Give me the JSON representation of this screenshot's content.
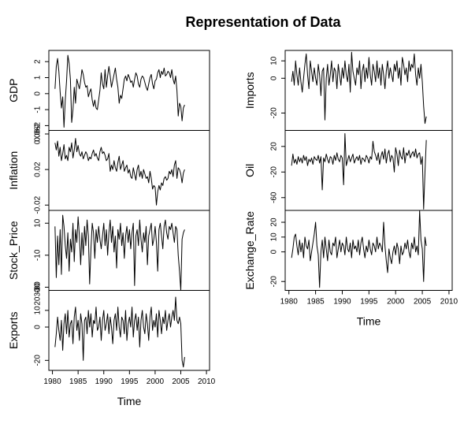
{
  "title": "Representation of Data",
  "chart_data": {
    "type": "line",
    "title": "Representation of Data",
    "xlabel": "Time",
    "x_start": 1980.5,
    "x_step": 0.25,
    "panels": [
      {
        "name": "GDP",
        "ylabel": "GDP",
        "ylim": [
          -2.3,
          2.7
        ],
        "yticks": [
          2,
          1,
          0,
          -1,
          -2
        ],
        "ytick_labels": [
          "2",
          "1",
          "0",
          "-1",
          "-2"
        ],
        "top_edge_label": "",
        "bottom_edge_label": "-2",
        "values": [
          0.3,
          1.7,
          2.2,
          1.4,
          0.1,
          -0.9,
          -0.2,
          -2.1,
          -0.4,
          0.8,
          2.4,
          1.9,
          0.9,
          -1.8,
          -1.0,
          0.4,
          -0.6,
          0.9,
          0.6,
          0.3,
          0.8,
          1.5,
          1.2,
          0.7,
          0.4,
          0.5,
          -0.2,
          0.1,
          0.3,
          -0.4,
          -0.8,
          -0.4,
          -0.9,
          -1.0,
          -0.4,
          0.2,
          1.3,
          0.6,
          0.3,
          1.5,
          0.4,
          1.1,
          1.7,
          1.1,
          0.4,
          0.8,
          1.2,
          1.6,
          0.9,
          0.4,
          -0.6,
          -0.1,
          -0.3,
          0.3,
          0.9,
          1.1,
          0.8,
          1.2,
          1.0,
          0.7,
          0.8,
          0.4,
          0.9,
          1.3,
          1.1,
          0.6,
          0.4,
          0.9,
          1.1,
          1.0,
          0.7,
          0.4,
          0.2,
          0.6,
          1.0,
          1.2,
          0.6,
          0.3,
          0.8,
          0.9,
          1.3,
          1.5,
          1.0,
          1.4,
          1.2,
          1.6,
          1.1,
          1.2,
          1.4,
          1.3,
          1.0,
          1.5,
          0.9,
          0.6,
          1.1,
          0.2,
          -1.4,
          -0.6,
          -0.8,
          -1.7,
          -0.9,
          -0.7
        ]
      },
      {
        "name": "Inflation",
        "ylabel": "Inflation",
        "ylim": [
          -0.026,
          0.064
        ],
        "yticks": [
          0.06,
          0.02,
          -0.02
        ],
        "ytick_labels": [
          "0.06",
          "0.02",
          "-0.02"
        ],
        "top_edge_label": "0.06",
        "bottom_edge_label": "",
        "values": [
          0.05,
          0.042,
          0.052,
          0.035,
          0.045,
          0.03,
          0.038,
          0.048,
          0.032,
          0.036,
          0.03,
          0.045,
          0.04,
          0.05,
          0.033,
          0.042,
          0.055,
          0.04,
          0.047,
          0.038,
          0.035,
          0.04,
          0.032,
          0.036,
          0.04,
          0.037,
          0.03,
          0.034,
          0.032,
          0.038,
          0.042,
          0.035,
          0.038,
          0.033,
          0.03,
          0.04,
          0.045,
          0.038,
          0.04,
          0.036,
          0.03,
          0.032,
          0.038,
          0.018,
          0.025,
          0.02,
          0.03,
          0.022,
          0.018,
          0.028,
          0.035,
          0.02,
          0.025,
          0.03,
          0.018,
          0.022,
          0.025,
          0.016,
          0.02,
          0.012,
          0.01,
          0.022,
          0.015,
          0.008,
          0.02,
          0.025,
          0.012,
          0.018,
          0.01,
          0.02,
          0.015,
          0.01,
          0.012,
          0.005,
          0.018,
          0.01,
          -0.002,
          0.002,
          0.0,
          -0.02,
          -0.005,
          0.002,
          -0.003,
          0.005,
          0.002,
          0.01,
          0.012,
          0.008,
          0.01,
          0.018,
          0.015,
          0.02,
          0.012,
          0.025,
          0.03,
          0.01,
          0.022,
          0.02,
          0.015,
          0.005,
          0.016,
          0.02
        ]
      },
      {
        "name": "Stock_Price",
        "ylabel": "Stock_Price",
        "ylim": [
          -32,
          18
        ],
        "yticks": [
          10,
          -10,
          -30
        ],
        "ytick_labels": [
          "10",
          "-10",
          "-30"
        ],
        "top_edge_label": "",
        "bottom_edge_label": "30",
        "values": [
          8,
          -24,
          2,
          -16,
          6,
          -22,
          15,
          8,
          -4,
          -12,
          4,
          -20,
          0,
          -8,
          10,
          -14,
          6,
          -2,
          14,
          2,
          -16,
          4,
          -10,
          8,
          -4,
          12,
          2,
          -28,
          -6,
          10,
          4,
          -12,
          6,
          -2,
          8,
          0,
          -6,
          2,
          10,
          -4,
          6,
          -10,
          4,
          12,
          -2,
          8,
          -8,
          2,
          -18,
          6,
          0,
          10,
          -4,
          4,
          -12,
          2,
          8,
          -2,
          6,
          -6,
          4,
          10,
          -29,
          2,
          6,
          -4,
          12,
          0,
          -8,
          4,
          -2,
          8,
          -16,
          2,
          6,
          10,
          -4,
          0,
          8,
          -2,
          -20,
          6,
          10,
          2,
          -6,
          8,
          12,
          4,
          0,
          8,
          6,
          10,
          4,
          -2,
          8,
          6,
          -10,
          -20,
          -32,
          0,
          4,
          6
        ]
      },
      {
        "name": "Exports",
        "ylabel": "Exports",
        "ylim": [
          -26,
          22
        ],
        "yticks": [
          10,
          0,
          -20
        ],
        "ytick_labels": [
          "10",
          "0",
          "-20"
        ],
        "top_edge_label": "2030",
        "bottom_edge_label": "",
        "values": [
          -12,
          -4,
          6,
          -2,
          -8,
          4,
          -14,
          2,
          8,
          -4,
          10,
          -6,
          2,
          4,
          -10,
          6,
          12,
          -2,
          4,
          -8,
          8,
          2,
          -20,
          4,
          6,
          -4,
          10,
          0,
          8,
          -6,
          4,
          2,
          12,
          -2,
          0,
          6,
          -8,
          4,
          10,
          -2,
          2,
          8,
          -4,
          6,
          0,
          -10,
          4,
          8,
          -2,
          12,
          0,
          -6,
          6,
          4,
          -4,
          10,
          -8,
          2,
          6,
          0,
          12,
          -6,
          4,
          8,
          -2,
          6,
          -12,
          4,
          10,
          0,
          -4,
          8,
          2,
          -8,
          6,
          12,
          -2,
          4,
          0,
          8,
          -6,
          10,
          4,
          -4,
          6,
          2,
          10,
          -2,
          4,
          8,
          0,
          6,
          10,
          4,
          18,
          4,
          2,
          6,
          2,
          -20,
          -24,
          -18
        ]
      },
      {
        "name": "Imports",
        "ylabel": "Imports",
        "ylim": [
          -30,
          16
        ],
        "yticks": [
          10,
          0,
          -20
        ],
        "ytick_labels": [
          "10",
          "0",
          "-20"
        ],
        "top_edge_label": "",
        "bottom_edge_label": "",
        "values": [
          -2,
          4,
          -4,
          10,
          2,
          -4,
          6,
          -2,
          -8,
          0,
          8,
          14,
          2,
          -6,
          10,
          4,
          -2,
          6,
          0,
          -4,
          8,
          2,
          -10,
          4,
          6,
          -24,
          0,
          8,
          -4,
          2,
          10,
          -2,
          6,
          4,
          -6,
          8,
          2,
          -4,
          6,
          0,
          10,
          2,
          -2,
          8,
          -8,
          15,
          4,
          0,
          -4,
          6,
          2,
          10,
          -6,
          4,
          8,
          -2,
          6,
          0,
          12,
          2,
          -4,
          8,
          4,
          -2,
          10,
          0,
          6,
          -4,
          8,
          2,
          -6,
          4,
          10,
          0,
          6,
          2,
          -2,
          8,
          4,
          10,
          0,
          6,
          -4,
          12,
          8,
          2,
          6,
          -2,
          10,
          4,
          8,
          6,
          14,
          2,
          -4,
          6,
          0,
          8,
          -2,
          -16,
          -26,
          -22
        ]
      },
      {
        "name": "Oil",
        "ylabel": "Oil",
        "ylim": [
          -80,
          45
        ],
        "yticks": [
          20,
          -20,
          -60
        ],
        "ytick_labels": [
          "20",
          "-20",
          "-60"
        ],
        "top_edge_label": "",
        "bottom_edge_label": "",
        "values": [
          -10,
          8,
          -6,
          0,
          -8,
          4,
          -4,
          2,
          -6,
          6,
          -2,
          4,
          -10,
          0,
          -4,
          2,
          -8,
          4,
          0,
          -2,
          6,
          -6,
          4,
          -48,
          2,
          -4,
          8,
          0,
          -6,
          4,
          2,
          -8,
          6,
          -2,
          10,
          0,
          -4,
          6,
          2,
          -40,
          40,
          -10,
          -2,
          6,
          -4,
          2,
          8,
          -6,
          0,
          4,
          -2,
          6,
          -8,
          2,
          0,
          -4,
          6,
          2,
          -6,
          4,
          0,
          28,
          12,
          6,
          -2,
          10,
          -8,
          4,
          12,
          0,
          16,
          -6,
          8,
          14,
          -4,
          6,
          2,
          -20,
          18,
          8,
          -10,
          14,
          4,
          0,
          18,
          -6,
          10,
          6,
          14,
          2,
          8,
          12,
          4,
          16,
          2,
          8,
          10,
          -8,
          4,
          -78,
          -20,
          30
        ]
      },
      {
        "name": "Exchange_Rate",
        "ylabel": "Exchange_Rate",
        "ylim": [
          -26,
          28
        ],
        "yticks": [
          20,
          10,
          0,
          -20
        ],
        "ytick_labels": [
          "20",
          "10",
          "0",
          "-20"
        ],
        "top_edge_label": "",
        "bottom_edge_label": "",
        "values": [
          -4,
          2,
          10,
          12,
          4,
          -2,
          8,
          0,
          6,
          -4,
          10,
          4,
          2,
          8,
          -6,
          0,
          6,
          12,
          20,
          4,
          -2,
          -24,
          0,
          8,
          -4,
          10,
          2,
          -6,
          8,
          0,
          -2,
          6,
          4,
          10,
          -4,
          2,
          8,
          0,
          6,
          4,
          -2,
          10,
          2,
          0,
          6,
          -4,
          8,
          2,
          4,
          0,
          8,
          -2,
          6,
          10,
          2,
          -4,
          4,
          0,
          8,
          2,
          -2,
          6,
          4,
          0,
          10,
          2,
          6,
          4,
          0,
          20,
          4,
          -6,
          -14,
          2,
          -4,
          -8,
          0,
          4,
          -2,
          6,
          2,
          -8,
          4,
          -2,
          0,
          6,
          2,
          8,
          0,
          -4,
          6,
          2,
          10,
          0,
          4,
          -2,
          28,
          8,
          2,
          -20,
          10,
          4
        ]
      }
    ],
    "x_ticks": [
      1980,
      1985,
      1990,
      1995,
      2000,
      2005,
      2010
    ],
    "x_tick_labels": [
      "1980",
      "1985",
      "1990",
      "1995",
      "2000",
      "2005",
      "2010"
    ]
  }
}
